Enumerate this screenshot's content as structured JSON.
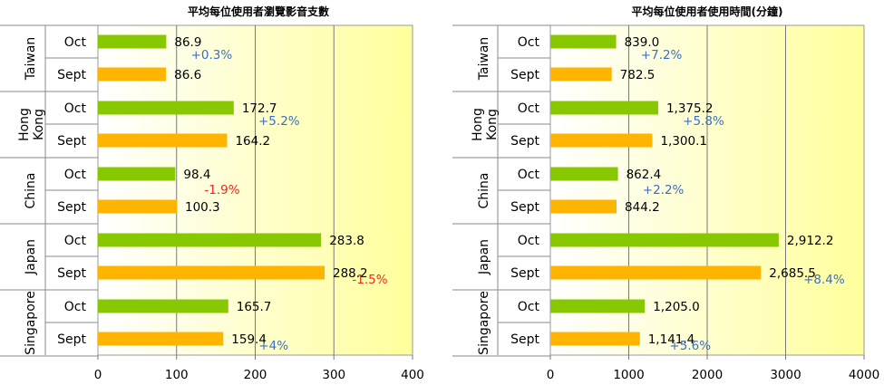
{
  "chart_data": [
    {
      "type": "bar",
      "title": "平均每位使用者瀏覽影音支數",
      "xlabel": "",
      "ylabel": "",
      "xlim": [
        0,
        400
      ],
      "ticks": [
        "0",
        "100",
        "200",
        "300",
        "400"
      ],
      "grid": true,
      "categories": [
        "Taiwan",
        "Hong Kong",
        "China",
        "Japan",
        "Singapore"
      ],
      "series": [
        {
          "name": "Oct",
          "values": [
            86.9,
            172.7,
            98.4,
            283.8,
            165.7
          ],
          "color": "#88c800",
          "labels": [
            "86.9",
            "172.7",
            "98.4",
            "283.8",
            "165.7"
          ]
        },
        {
          "name": "Sept",
          "values": [
            86.6,
            164.2,
            100.3,
            288.2,
            159.4
          ],
          "color": "#ffb400",
          "labels": [
            "86.6",
            "164.2",
            "100.3",
            "288.2",
            "159.4"
          ]
        }
      ],
      "changes": [
        "+0.3%",
        "+5.2%",
        "-1.9%",
        "-1.5%",
        "+4%"
      ]
    },
    {
      "type": "bar",
      "title": "平均每位使用者使用時間(分鐘)",
      "xlabel": "",
      "ylabel": "",
      "xlim": [
        0,
        4000
      ],
      "ticks": [
        "0",
        "1000",
        "2000",
        "3000",
        "4000"
      ],
      "grid": true,
      "categories": [
        "Taiwan",
        "Hong Kong",
        "China",
        "Japan",
        "Singapore"
      ],
      "series": [
        {
          "name": "Oct",
          "values": [
            839.0,
            1375.2,
            862.4,
            2912.2,
            1205.0
          ],
          "color": "#88c800",
          "labels": [
            "839.0",
            "1,375.2",
            "862.4",
            "2,912.2",
            "1,205.0"
          ]
        },
        {
          "name": "Sept",
          "values": [
            782.5,
            1300.1,
            844.2,
            2685.5,
            1141.4
          ],
          "color": "#ffb400",
          "labels": [
            "782.5",
            "1,300.1",
            "844.2",
            "2,685.5",
            "1,141.4"
          ]
        }
      ],
      "changes": [
        "+7.2%",
        "+5.8%",
        "+2.2%",
        "+8.4%",
        "+5.6%"
      ]
    }
  ],
  "colors": {
    "positive": "#3a6fc4",
    "negative": "#ff2020",
    "plot_gradient_start": "#ffffff",
    "plot_gradient_end": "#ffff9c"
  }
}
